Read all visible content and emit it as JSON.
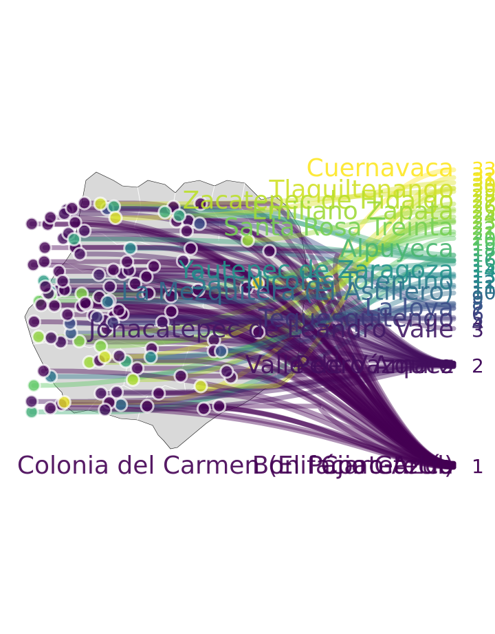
{
  "chart_data": {
    "type": "scatter",
    "palette": [
      "#440154",
      "#3b528b",
      "#21918c",
      "#5ec962",
      "#b5de2b",
      "#fde725"
    ],
    "rank_labels": [
      {
        "text": "1",
        "level": 1
      },
      {
        "text": "2",
        "level": 2
      },
      {
        "text": "3",
        "level": 3
      },
      {
        "text": "4",
        "level": 4
      },
      {
        "text": "5",
        "level": 5
      },
      {
        "text": "6",
        "level": 6
      },
      {
        "text": "7",
        "level": 7
      },
      {
        "text": "8",
        "level": 8
      },
      {
        "text": "9",
        "level": 9
      },
      {
        "text": "10",
        "level": 10
      },
      {
        "text": "11",
        "level": 11
      },
      {
        "text": "12",
        "level": 12
      },
      {
        "text": "13",
        "level": 13
      },
      {
        "text": "14",
        "level": 14
      },
      {
        "text": "15",
        "level": 15
      },
      {
        "text": "16",
        "level": 16
      },
      {
        "text": "17",
        "level": 17
      },
      {
        "text": "18",
        "level": 18
      },
      {
        "text": "19",
        "level": 19
      },
      {
        "text": "20",
        "level": 20
      },
      {
        "text": "21",
        "level": 21
      },
      {
        "text": "22",
        "level": 22
      },
      {
        "text": "23",
        "level": 23
      },
      {
        "text": "24",
        "level": 24
      },
      {
        "text": "25",
        "level": 25
      },
      {
        "text": "26",
        "level": 26
      },
      {
        "text": "27",
        "level": 27
      },
      {
        "text": "28",
        "level": 28
      },
      {
        "text": "29",
        "level": 29
      },
      {
        "text": "30",
        "level": 30
      },
      {
        "text": "31",
        "level": 31
      },
      {
        "text": "32",
        "level": 32
      },
      {
        "text": "33",
        "level": 33
      }
    ],
    "labels": [
      {
        "text": "Cuernavaca",
        "level": 33
      },
      {
        "text": "Tlaquiltenango",
        "level": 29
      },
      {
        "text": "Zacatepec de Hidalgo",
        "level": 27
      },
      {
        "text": "Emiliano Zapata",
        "level": 25
      },
      {
        "text": "Santa Rosa Treinta",
        "level": 22
      },
      {
        "text": "Alpuyeca",
        "level": 18
      },
      {
        "text": "Yautepec de Zaragoza",
        "level": 14
      },
      {
        "text": "San Nicolás Tolentino",
        "level": 12
      },
      {
        "text": "La Mezquitera (El Astillero)",
        "level": 10
      },
      {
        "text": "La Joya",
        "level": 7
      },
      {
        "text": "Tequesquitengo",
        "level": 5
      },
      {
        "text": "Jonacatepec de Leandro Valle",
        "level": 3
      },
      {
        "text": "Valle de Vázquez",
        "level": 2
      },
      {
        "text": "Pedro Amaro",
        "level": 2
      },
      {
        "text": "Bonifacio García",
        "level": 1
      },
      {
        "text": "Coatetelco",
        "level": 1
      },
      {
        "text": "Colonia del Carmen (El Pájaro Azul)",
        "level": 1
      }
    ]
  }
}
